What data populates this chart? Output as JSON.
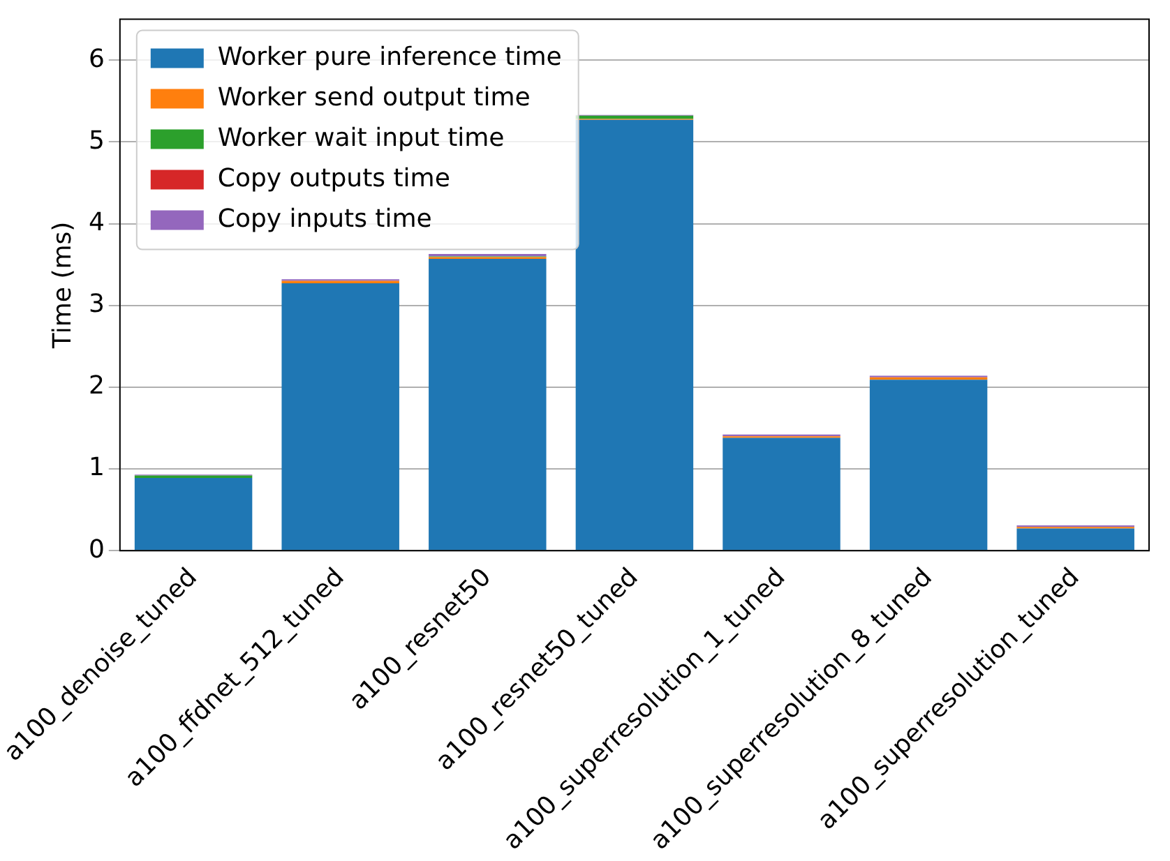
{
  "chart_data": {
    "type": "bar",
    "stacked": true,
    "ylabel": "Time (ms)",
    "categories": [
      "a100_denoise_tuned",
      "a100_ffdnet_512_tuned",
      "a100_resnet50",
      "a100_resnet50_tuned",
      "a100_superresolution_1_tuned",
      "a100_superresolution_8_tuned",
      "a100_superresolution_tuned"
    ],
    "series": [
      {
        "name": "Worker pure inference time",
        "color": "#1f77b4",
        "values": [
          0.89,
          3.27,
          3.57,
          5.27,
          1.38,
          2.09,
          0.27
        ]
      },
      {
        "name": "Worker send output time",
        "color": "#ff7f0e",
        "values": [
          null,
          0.03,
          0.02,
          0.01,
          0.02,
          0.03,
          0.02
        ]
      },
      {
        "name": "Worker wait input time",
        "color": "#2ca02c",
        "values": [
          0.03,
          null,
          0.01,
          0.04,
          null,
          null,
          null
        ]
      },
      {
        "name": "Copy outputs time",
        "color": "#d62728",
        "values": [
          null,
          null,
          null,
          null,
          null,
          null,
          null
        ]
      },
      {
        "name": "Copy inputs time",
        "color": "#9467bd",
        "values": [
          0.01,
          0.02,
          0.03,
          0.01,
          0.02,
          0.02,
          0.02
        ]
      }
    ],
    "ylim": [
      0,
      6.5
    ],
    "yticks": [
      0,
      1,
      2,
      3,
      4,
      5,
      6
    ],
    "grid": "y",
    "legend": "top left"
  }
}
